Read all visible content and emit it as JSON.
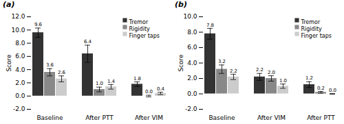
{
  "chart_data": [
    {
      "type": "bar",
      "title": "(a)",
      "ylabel": "Score",
      "categories": [
        "Baseline",
        "After PTT",
        "After VIM"
      ],
      "series": [
        {
          "name": "Tremor",
          "color": "#333333",
          "values": [
            9.6,
            6.4,
            1.8
          ],
          "value_labels": [
            "9.6",
            "6.4",
            "1.8"
          ],
          "errors": [
            0.7,
            1.3,
            0.35
          ]
        },
        {
          "name": "Rigidity",
          "color": "#888888",
          "values": [
            3.6,
            1.0,
            0.0
          ],
          "value_labels": [
            "3.6",
            "1.0",
            "0.0"
          ],
          "errors": [
            0.55,
            0.35,
            0.12
          ]
        },
        {
          "name": "Finger taps",
          "color": "#cccccc",
          "values": [
            2.6,
            1.4,
            0.4
          ],
          "value_labels": [
            "2.6",
            "1.4",
            "0.4"
          ],
          "errors": [
            0.45,
            0.35,
            0.18
          ]
        }
      ],
      "ylim": [
        -2,
        12
      ],
      "yticks": [
        {
          "value": -2,
          "label": "-2.0"
        },
        {
          "value": 0,
          "label": "0.0"
        },
        {
          "value": 2,
          "label": "2.0"
        },
        {
          "value": 4,
          "label": "4.0"
        },
        {
          "value": 6,
          "label": "6.0"
        },
        {
          "value": 8,
          "label": "8.0"
        },
        {
          "value": 10,
          "label": "10.0"
        },
        {
          "value": 12,
          "label": "12.0"
        }
      ],
      "grid": false,
      "legend": "upper right",
      "data_labels": true
    },
    {
      "type": "bar",
      "title": "(b)",
      "ylabel": "Score",
      "categories": [
        "Baseline",
        "After VIM",
        "After PTT"
      ],
      "series": [
        {
          "name": "Tremor",
          "color": "#333333",
          "values": [
            7.8,
            2.2,
            1.2
          ],
          "value_labels": [
            "7.8",
            "2.2",
            "1.2"
          ],
          "errors": [
            0.7,
            0.45,
            0.38
          ]
        },
        {
          "name": "Rigidity",
          "color": "#888888",
          "values": [
            3.2,
            2.0,
            0.2
          ],
          "value_labels": [
            "3.2",
            "2.0",
            "0.2"
          ],
          "errors": [
            0.55,
            0.35,
            0.12
          ]
        },
        {
          "name": "Finger taps",
          "color": "#cccccc",
          "values": [
            2.2,
            1.0,
            0.0
          ],
          "value_labels": [
            "2.2",
            "1.0",
            "0.0"
          ],
          "errors": [
            0.35,
            0.28,
            0.04
          ]
        }
      ],
      "ylim": [
        -2,
        10
      ],
      "yticks": [
        {
          "value": -2,
          "label": "-2.0"
        },
        {
          "value": 0,
          "label": "0.0"
        },
        {
          "value": 2,
          "label": "2.0"
        },
        {
          "value": 4,
          "label": "4.0"
        },
        {
          "value": 6,
          "label": "6.0"
        },
        {
          "value": 8,
          "label": "8.0"
        },
        {
          "value": 10,
          "label": "10.0"
        }
      ],
      "grid": false,
      "legend": "upper right",
      "data_labels": true
    }
  ]
}
